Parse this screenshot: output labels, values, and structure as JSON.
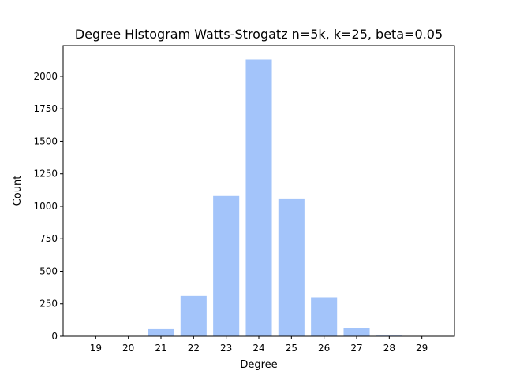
{
  "chart_data": {
    "type": "bar",
    "title": "Degree Histogram Watts-Strogatz n=5k, k=25, beta=0.05",
    "xlabel": "Degree",
    "ylabel": "Count",
    "categories": [
      20,
      21,
      22,
      23,
      24,
      25,
      26,
      27,
      28
    ],
    "values": [
      1,
      55,
      310,
      1080,
      2130,
      1055,
      300,
      65,
      5
    ],
    "x_tick_labels": [
      "19",
      "20",
      "21",
      "22",
      "23",
      "24",
      "25",
      "26",
      "27",
      "28",
      "29"
    ],
    "y_ticks": [
      0,
      250,
      500,
      750,
      1000,
      1250,
      1500,
      1750,
      2000
    ],
    "y_tick_labels": [
      "0",
      "250",
      "500",
      "750",
      "1000",
      "1250",
      "1500",
      "1750",
      "2000"
    ],
    "ylim": [
      0,
      2236
    ],
    "bar_color": "#a3c4fa",
    "grid": false,
    "legend": false
  }
}
